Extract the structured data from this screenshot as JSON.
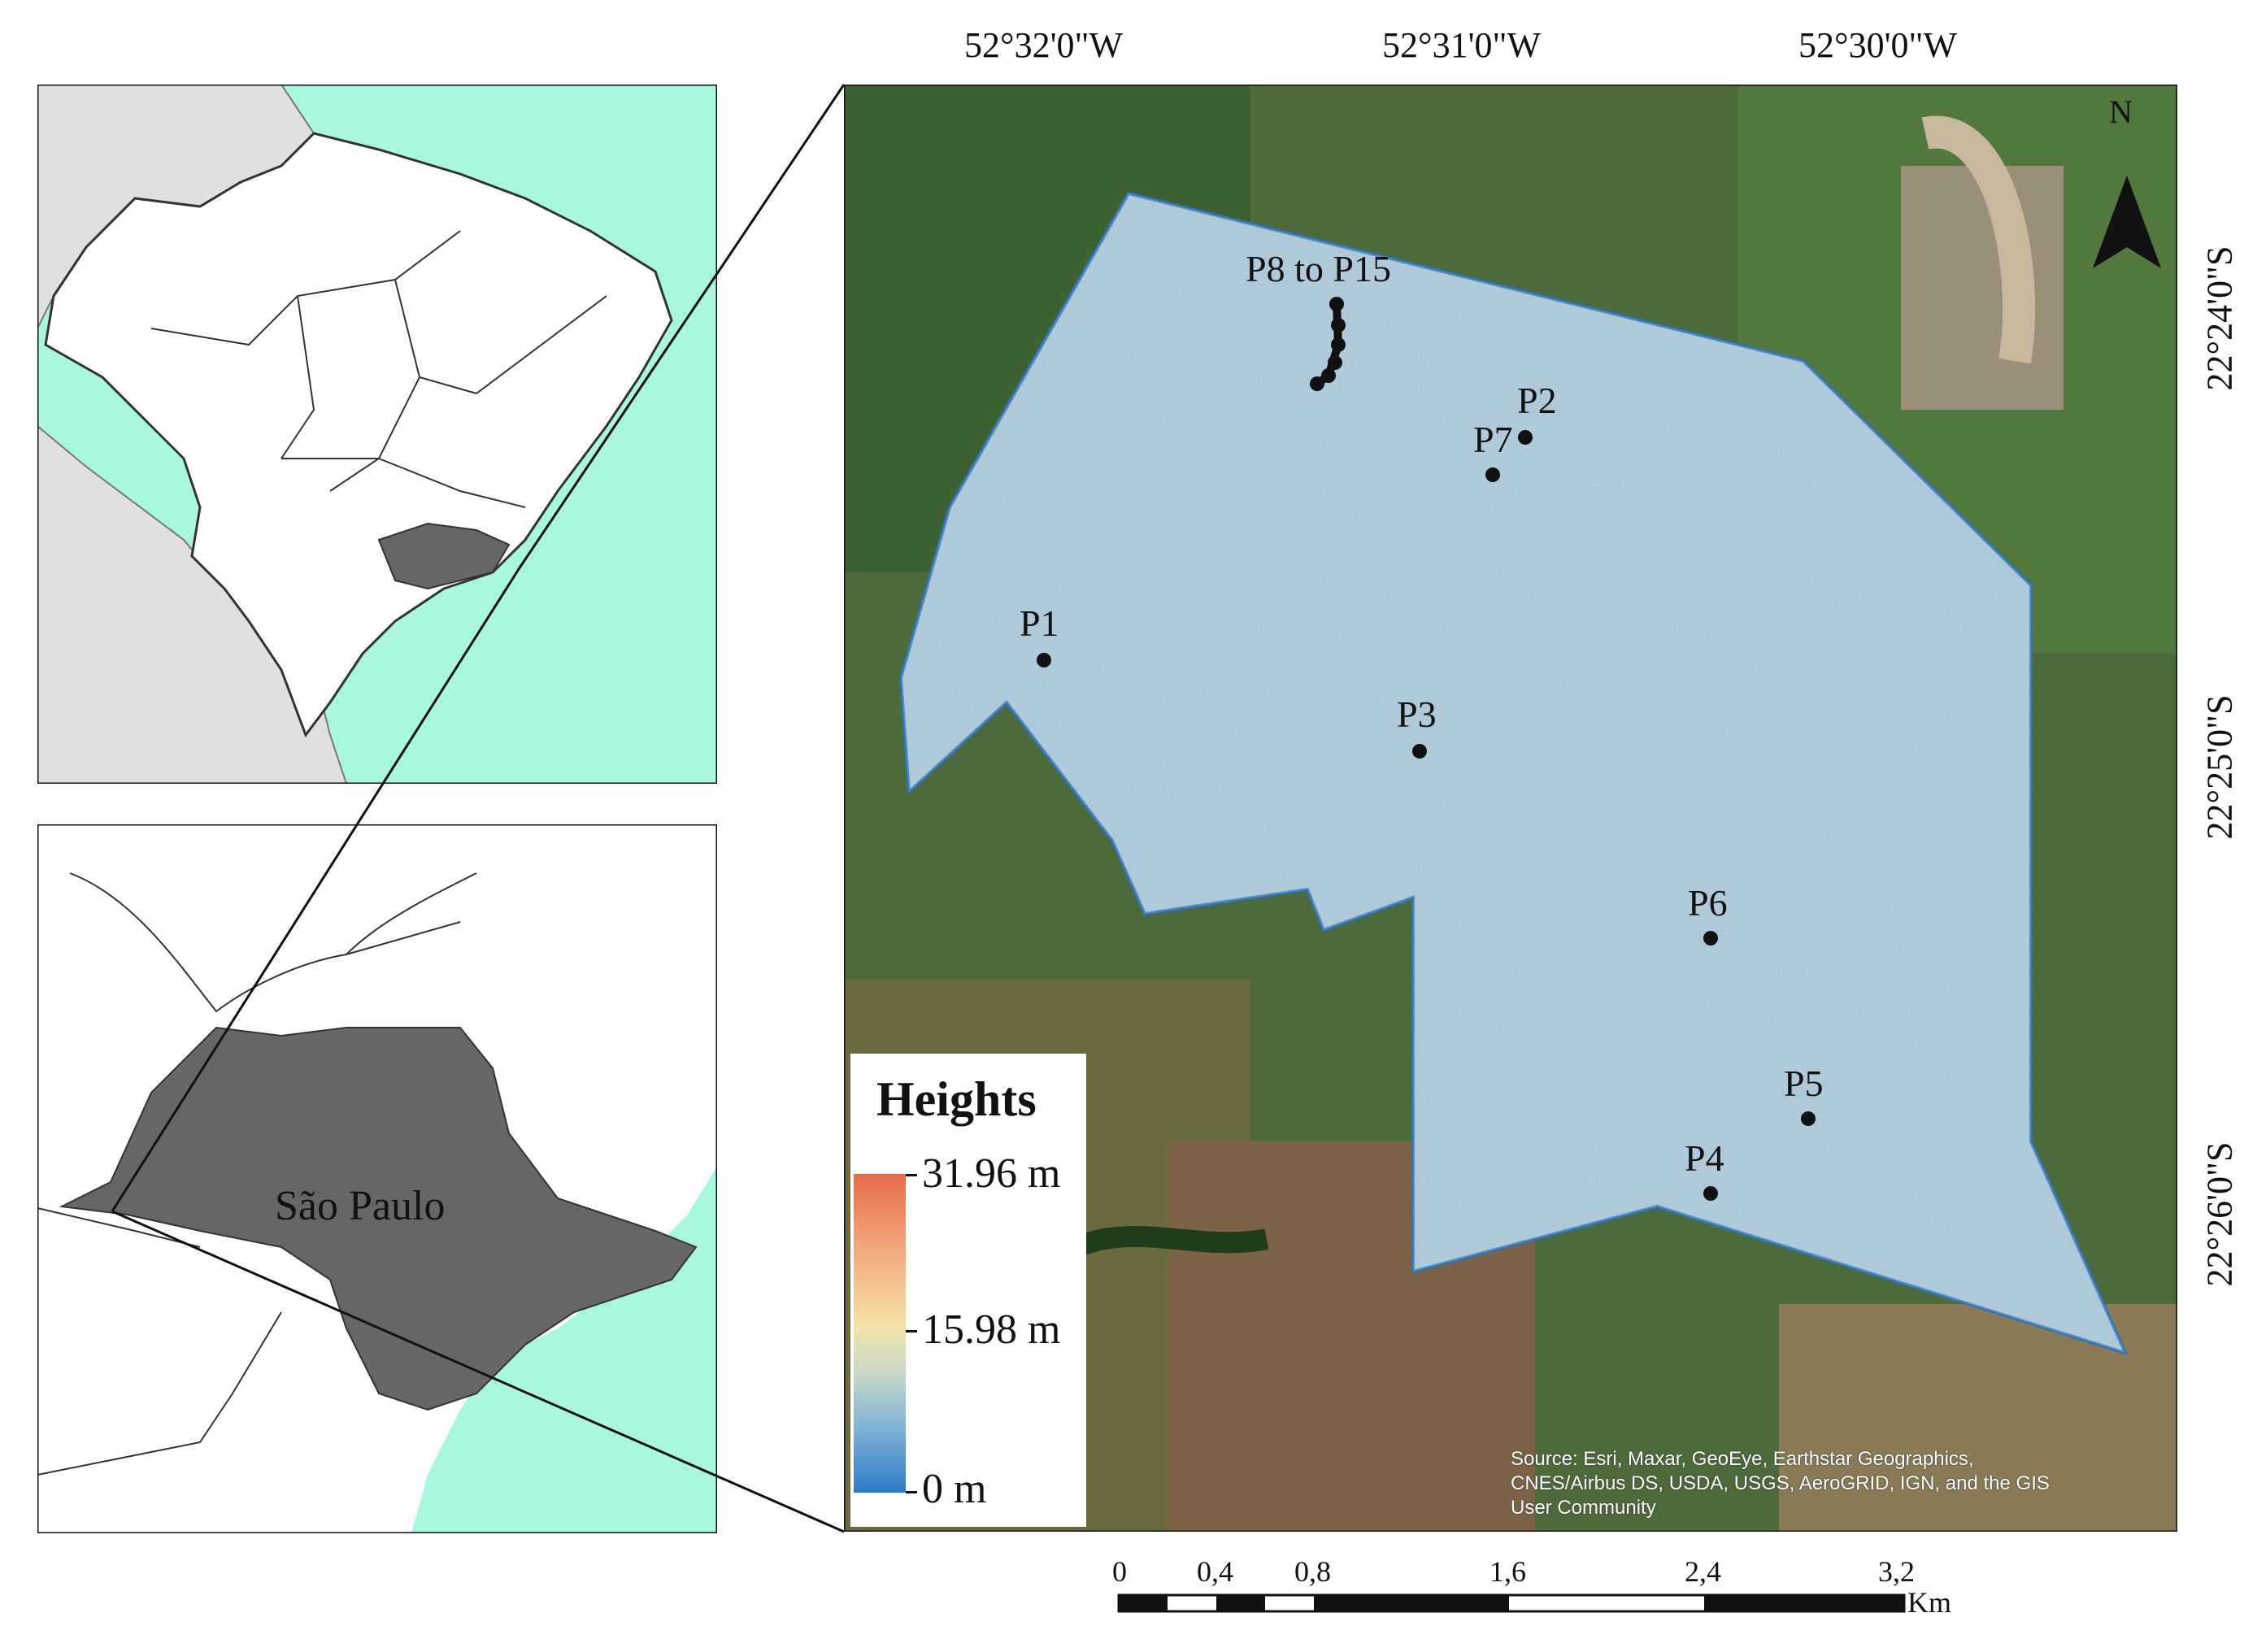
{
  "coordinates": {
    "top": [
      "52°32'0\"W",
      "52°31'0\"W",
      "52°30'0\"W"
    ],
    "right": [
      "22°24'0\"S",
      "22°25'0\"S",
      "22°26'0\"S"
    ]
  },
  "north_arrow": {
    "label": "N",
    "icon": "north-arrow-icon"
  },
  "points": [
    {
      "label": "P8 to P15"
    },
    {
      "label": "P2"
    },
    {
      "label": "P7"
    },
    {
      "label": "P1"
    },
    {
      "label": "P3"
    },
    {
      "label": "P6"
    },
    {
      "label": "P5"
    },
    {
      "label": "P4"
    }
  ],
  "legend": {
    "title": "Heights",
    "max_label": "31.96 m",
    "mid_label": "15.98 m",
    "min_label": "0 m",
    "max_value_m": 31.96,
    "mid_value_m": 15.98,
    "min_value_m": 0,
    "ramp_colors": [
      "#2a7bc4",
      "#7fb2d6",
      "#f5e3a8",
      "#f3a57a",
      "#e76a4a"
    ]
  },
  "attribution": {
    "line1": "Source: Esri, Maxar, GeoEye, Earthstar Geographics,",
    "line2": "CNES/Airbus DS, USDA, USGS, AeroGRID, IGN, and the GIS",
    "line3": "User Community"
  },
  "scale_bar": {
    "labels": [
      "0",
      "0,4",
      "0,8",
      "1,6",
      "2,4",
      "3,2"
    ],
    "unit": "Km"
  },
  "inset": {
    "state_label": "São Paulo"
  },
  "colors": {
    "ocean": "#a8f8dc",
    "land_other": "#e0e0e0",
    "highlight_state": "#666666",
    "study_area": "#a9c6dc"
  }
}
